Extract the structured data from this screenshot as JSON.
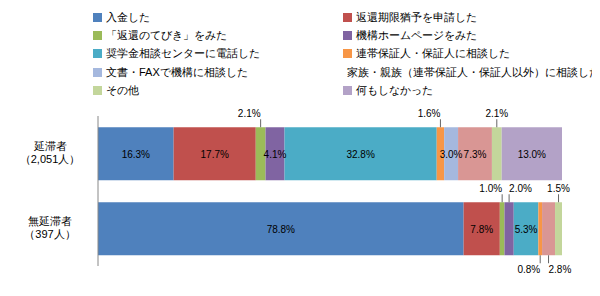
{
  "chart_data": {
    "type": "bar",
    "orientation": "horizontal",
    "stacked": true,
    "data_labels": true,
    "tick_labels": "y",
    "legend": "top",
    "xlim": [
      0,
      100
    ],
    "categories": [
      "延滞者（2,051人）",
      "無延滞者（397人）"
    ],
    "series": [
      {
        "name": "入金した",
        "color": "#4F81BD",
        "values": [
          16.3,
          78.8
        ],
        "value_labels": [
          "16.3%",
          "78.8%"
        ]
      },
      {
        "name": "返還期限猶予を申請した",
        "color": "#C0504D",
        "values": [
          17.7,
          7.8
        ],
        "value_labels": [
          "17.7%",
          "7.8%"
        ]
      },
      {
        "name": "「返還のてびき」をみた",
        "color": "#9BBB59",
        "values": [
          2.1,
          1.0
        ],
        "value_labels": [
          "2.1%",
          "1.0%"
        ]
      },
      {
        "name": "機構ホームページをみた",
        "color": "#8064A2",
        "values": [
          4.1,
          2.0
        ],
        "value_labels": [
          "4.1%",
          "2.0%"
        ]
      },
      {
        "name": "奨学金相談センターに電話した",
        "color": "#4BACC6",
        "values": [
          32.8,
          5.3
        ],
        "value_labels": [
          "32.8%",
          "5.3%"
        ]
      },
      {
        "name": "連帯保証人・保証人に相談した",
        "color": "#F79646",
        "values": [
          1.6,
          0.8
        ],
        "value_labels": [
          "1.6%",
          "0.8%"
        ]
      },
      {
        "name": "文書・FAXで機構に相談した",
        "color": "#A5B8DE",
        "values": [
          3.0,
          null
        ],
        "value_labels": [
          "3.0%",
          null
        ]
      },
      {
        "name": "家族・親族（連帯保証人・保証人以外）に相談した",
        "color": "#D99694",
        "values": [
          7.3,
          2.8
        ],
        "value_labels": [
          "7.3%",
          "2.8%"
        ]
      },
      {
        "name": "その他",
        "color": "#C3D69B",
        "values": [
          2.1,
          1.5
        ],
        "value_labels": [
          "2.1%",
          "1.5%"
        ]
      },
      {
        "name": "何もしなかった",
        "color": "#B3A2C7",
        "values": [
          13.0,
          null
        ],
        "value_labels": [
          "13.0%",
          null
        ]
      }
    ]
  }
}
